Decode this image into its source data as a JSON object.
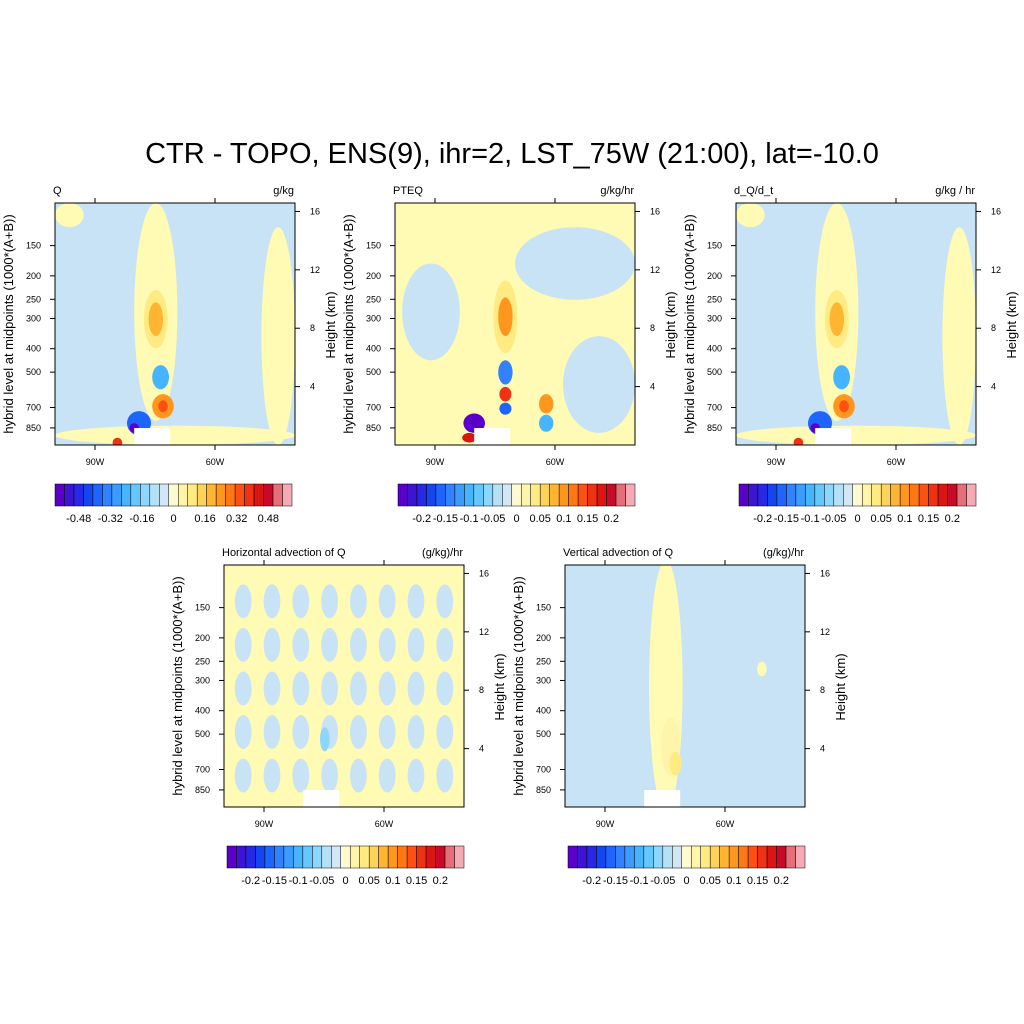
{
  "figure": {
    "title": "CTR - TOPO, ENS(9), ihr=2, LST_75W (21:00), lat=-10.0"
  },
  "colors": {
    "palette": [
      "#5b00c8",
      "#3c14d2",
      "#2828e6",
      "#1446f0",
      "#1e64ff",
      "#3282ff",
      "#3c9bff",
      "#46b4ff",
      "#64c8ff",
      "#8cd7ff",
      "#b4e1f5",
      "#d2e6f5",
      "#fffad2",
      "#fff5aa",
      "#ffeb82",
      "#ffd25a",
      "#ffb432",
      "#ff961e",
      "#ff7814",
      "#ff5014",
      "#f03214",
      "#dc1414",
      "#c80a28",
      "#e66e78",
      "#f5aab4"
    ],
    "light_blue": "#c8e3f5",
    "light_yellow": "#fffab4"
  },
  "chart_data": [
    {
      "type": "heatmap",
      "title": "Q",
      "units": "g/kg",
      "xlabel": "",
      "ylabel": "hybrid level at midpoints (1000*(A+B))",
      "ylabel_right": "Height (km)",
      "x_ticks": [
        "90W",
        "60W"
      ],
      "x_tick_values": [
        -90,
        -60
      ],
      "x_range": [
        -100,
        -40
      ],
      "y_ticks": [
        "150",
        "200",
        "250",
        "300",
        "400",
        "500",
        "700",
        "850"
      ],
      "y_tick_values": [
        150,
        200,
        250,
        300,
        400,
        500,
        700,
        850
      ],
      "y_range": [
        100,
        1000
      ],
      "y_right_ticks": [
        "16",
        "12",
        "8",
        "4"
      ],
      "y_right_tick_values": [
        16,
        12,
        8,
        4
      ],
      "colorbar_labels": [
        "-0.48",
        "-0.32",
        "-0.16",
        "0",
        "0.16",
        "0.32",
        "0.48"
      ],
      "colorbar_range": [
        -0.6,
        0.6
      ]
    },
    {
      "type": "heatmap",
      "title": "PTEQ",
      "units": "g/kg/hr",
      "xlabel": "",
      "ylabel": "hybrid level at midpoints (1000*(A+B))",
      "ylabel_right": "Height (km)",
      "x_ticks": [
        "90W",
        "60W"
      ],
      "x_tick_values": [
        -90,
        -60
      ],
      "x_range": [
        -100,
        -40
      ],
      "y_ticks": [
        "150",
        "200",
        "250",
        "300",
        "400",
        "500",
        "700",
        "850"
      ],
      "y_tick_values": [
        150,
        200,
        250,
        300,
        400,
        500,
        700,
        850
      ],
      "y_range": [
        100,
        1000
      ],
      "y_right_ticks": [
        "16",
        "12",
        "8",
        "4"
      ],
      "y_right_tick_values": [
        16,
        12,
        8,
        4
      ],
      "colorbar_labels": [
        "-0.2",
        "-0.15",
        "-0.1",
        "-0.05",
        "0",
        "0.05",
        "0.1",
        "0.15",
        "0.2"
      ],
      "colorbar_range": [
        -0.25,
        0.25
      ]
    },
    {
      "type": "heatmap",
      "title": "d_Q/d_t",
      "units": "g/kg / hr",
      "xlabel": "",
      "ylabel": "hybrid level at midpoints (1000*(A+B))",
      "ylabel_right": "Height (km)",
      "x_ticks": [
        "90W",
        "60W"
      ],
      "x_tick_values": [
        -90,
        -60
      ],
      "x_range": [
        -100,
        -40
      ],
      "y_ticks": [
        "150",
        "200",
        "250",
        "300",
        "400",
        "500",
        "700",
        "850"
      ],
      "y_tick_values": [
        150,
        200,
        250,
        300,
        400,
        500,
        700,
        850
      ],
      "y_range": [
        100,
        1000
      ],
      "y_right_ticks": [
        "16",
        "12",
        "8",
        "4"
      ],
      "y_right_tick_values": [
        16,
        12,
        8,
        4
      ],
      "colorbar_labels": [
        "-0.2",
        "-0.15",
        "-0.1",
        "-0.05",
        "0",
        "0.05",
        "0.1",
        "0.15",
        "0.2"
      ],
      "colorbar_range": [
        -0.25,
        0.25
      ]
    },
    {
      "type": "heatmap",
      "title": "Horizontal advection of Q",
      "units": "(g/kg)/hr",
      "xlabel": "",
      "ylabel": "hybrid level at midpoints (1000*(A+B))",
      "ylabel_right": "Height (km)",
      "x_ticks": [
        "90W",
        "60W"
      ],
      "x_tick_values": [
        -90,
        -60
      ],
      "x_range": [
        -100,
        -40
      ],
      "y_ticks": [
        "150",
        "200",
        "250",
        "300",
        "400",
        "500",
        "700",
        "850"
      ],
      "y_tick_values": [
        150,
        200,
        250,
        300,
        400,
        500,
        700,
        850
      ],
      "y_range": [
        100,
        1000
      ],
      "y_right_ticks": [
        "16",
        "12",
        "8",
        "4"
      ],
      "y_right_tick_values": [
        16,
        12,
        8,
        4
      ],
      "colorbar_labels": [
        "-0.2",
        "-0.15",
        "-0.1",
        "-0.05",
        "0",
        "0.05",
        "0.1",
        "0.15",
        "0.2"
      ],
      "colorbar_range": [
        -0.25,
        0.25
      ]
    },
    {
      "type": "heatmap",
      "title": "Vertical advection of Q",
      "units": "(g/kg)/hr",
      "xlabel": "",
      "ylabel": "hybrid level at midpoints (1000*(A+B))",
      "ylabel_right": "Height (km)",
      "x_ticks": [
        "90W",
        "60W"
      ],
      "x_tick_values": [
        -90,
        -60
      ],
      "x_range": [
        -100,
        -40
      ],
      "y_ticks": [
        "150",
        "200",
        "250",
        "300",
        "400",
        "500",
        "700",
        "850"
      ],
      "y_tick_values": [
        150,
        200,
        250,
        300,
        400,
        500,
        700,
        850
      ],
      "y_range": [
        100,
        1000
      ],
      "y_right_ticks": [
        "16",
        "12",
        "8",
        "4"
      ],
      "y_right_tick_values": [
        16,
        12,
        8,
        4
      ],
      "colorbar_labels": [
        "-0.2",
        "-0.15",
        "-0.1",
        "-0.05",
        "0",
        "0.05",
        "0.1",
        "0.15",
        "0.2"
      ],
      "colorbar_range": [
        -0.25,
        0.25
      ]
    }
  ]
}
